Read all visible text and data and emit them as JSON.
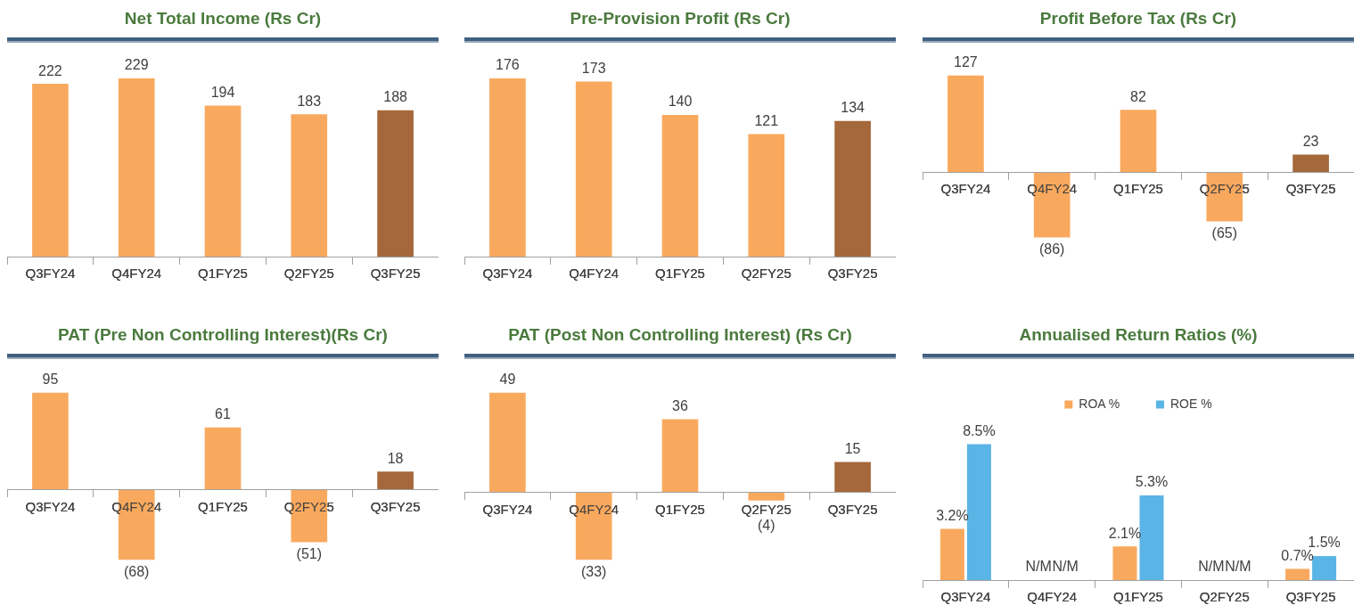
{
  "chart_data": [
    {
      "type": "bar",
      "title": "Net Total Income (Rs Cr)",
      "categories": [
        "Q3FY24",
        "Q4FY24",
        "Q1FY25",
        "Q2FY25",
        "Q3FY25"
      ],
      "values": [
        222,
        229,
        194,
        183,
        188
      ],
      "colors": [
        "#f9a95e",
        "#f9a95e",
        "#f9a95e",
        "#f9a95e",
        "#a5683a"
      ],
      "data_labels": true
    },
    {
      "type": "bar",
      "title": "Pre-Provision Profit (Rs Cr)",
      "categories": [
        "Q3FY24",
        "Q4FY24",
        "Q1FY25",
        "Q2FY25",
        "Q3FY25"
      ],
      "values": [
        176,
        173,
        140,
        121,
        134
      ],
      "colors": [
        "#f9a95e",
        "#f9a95e",
        "#f9a95e",
        "#f9a95e",
        "#a5683a"
      ],
      "data_labels": true
    },
    {
      "type": "bar",
      "title": "Profit Before Tax (Rs Cr)",
      "categories": [
        "Q3FY24",
        "Q4FY24",
        "Q1FY25",
        "Q2FY25",
        "Q3FY25"
      ],
      "values": [
        127,
        -86,
        82,
        -65,
        23
      ],
      "colors": [
        "#f9a95e",
        "#f9a95e",
        "#f9a95e",
        "#f9a95e",
        "#a5683a"
      ],
      "value_labels": [
        "127",
        "(86)",
        "82",
        "(65)",
        "23"
      ]
    },
    {
      "type": "bar",
      "title": "PAT (Pre Non Controlling Interest)(Rs Cr)",
      "categories": [
        "Q3FY24",
        "Q4FY24",
        "Q1FY25",
        "Q2FY25",
        "Q3FY25"
      ],
      "values": [
        95,
        -68,
        61,
        -51,
        18
      ],
      "colors": [
        "#f9a95e",
        "#f9a95e",
        "#f9a95e",
        "#f9a95e",
        "#a5683a"
      ],
      "value_labels": [
        "95",
        "(68)",
        "61",
        "(51)",
        "18"
      ]
    },
    {
      "type": "bar",
      "title": "PAT (Post Non Controlling Interest) (Rs Cr)",
      "categories": [
        "Q3FY24",
        "Q4FY24",
        "Q1FY25",
        "Q2FY25",
        "Q3FY25"
      ],
      "values": [
        49,
        -33,
        36,
        -4,
        15
      ],
      "colors": [
        "#f9a95e",
        "#f9a95e",
        "#f9a95e",
        "#f9a95e",
        "#a5683a"
      ],
      "value_labels": [
        "49",
        "(33)",
        "36",
        "(4)",
        "15"
      ]
    },
    {
      "type": "bar",
      "title": "Annualised Return Ratios (%)",
      "categories": [
        "Q3FY24",
        "Q4FY24",
        "Q1FY25",
        "Q2FY25",
        "Q3FY25"
      ],
      "legend": "top",
      "series": [
        {
          "name": "ROA %",
          "color": "#f9a95e",
          "values": [
            3.2,
            null,
            2.1,
            null,
            0.7
          ],
          "value_labels": [
            "3.2%",
            "N/M",
            "2.1%",
            "N/M",
            "0.7%"
          ]
        },
        {
          "name": "ROE %",
          "color": "#5ab4e5",
          "values": [
            8.5,
            null,
            5.3,
            null,
            1.5
          ],
          "value_labels": [
            "8.5%",
            "N/M",
            "5.3%",
            "N/M",
            "1.5%"
          ]
        }
      ]
    }
  ]
}
